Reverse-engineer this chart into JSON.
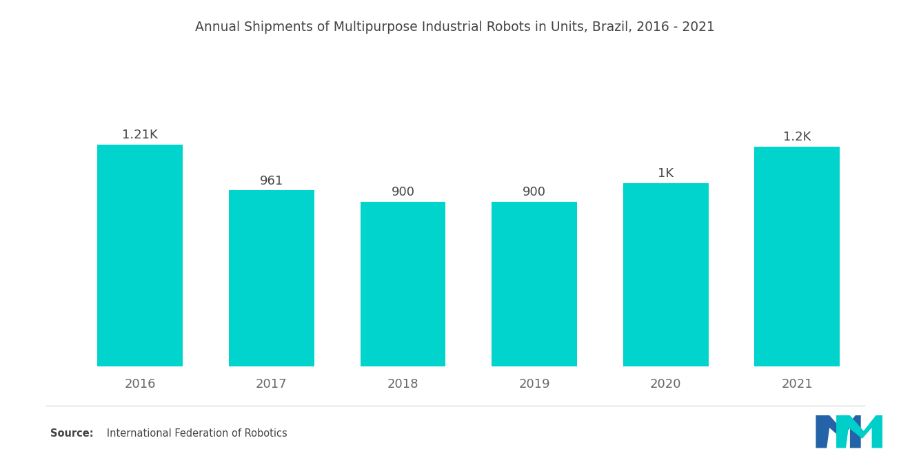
{
  "title": "Annual Shipments of Multipurpose Industrial Robots in Units, Brazil, 2016 - 2021",
  "categories": [
    "2016",
    "2017",
    "2018",
    "2019",
    "2020",
    "2021"
  ],
  "values": [
    1210,
    961,
    900,
    900,
    1000,
    1200
  ],
  "labels": [
    "1.21K",
    "961",
    "900",
    "900",
    "1K",
    "1.2K"
  ],
  "bar_color": "#00D4CC",
  "background_color": "#ffffff",
  "title_fontsize": 13.5,
  "label_fontsize": 13,
  "tick_fontsize": 13,
  "source_bold": "Source:",
  "source_rest": "   International Federation of Robotics",
  "ylim": [
    0,
    1700
  ],
  "bar_width": 0.65,
  "title_color": "#444444",
  "tick_color": "#666666",
  "label_color": "#444444",
  "separator_line_color": "#cccccc",
  "logo_blue": "#2563A8",
  "logo_teal": "#00CEC9"
}
